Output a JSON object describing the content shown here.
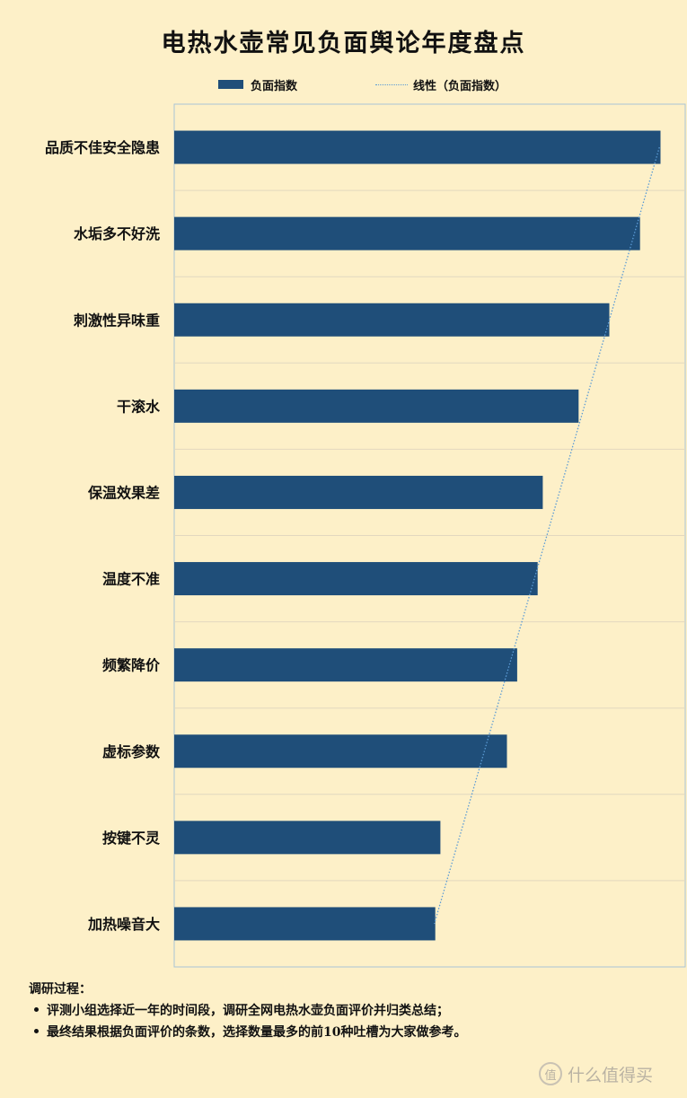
{
  "chart_data": {
    "type": "bar",
    "orientation": "horizontal",
    "title": "电热水壶常见负面舆论年度盘点",
    "categories": [
      "品质不佳安全隐患",
      "水垢多不好洗",
      "刺激性异味重",
      "干滚水",
      "保温效果差",
      "温度不准",
      "频繁降价",
      "虚标参数",
      "按键不灵",
      "加热噪音大"
    ],
    "series": [
      {
        "name": "负面指数",
        "values": [
          95,
          91,
          85,
          79,
          72,
          71,
          67,
          65,
          52,
          51
        ]
      }
    ],
    "trendline": {
      "name": "线性（负面指数）",
      "style": "dotted",
      "color": "#5b9bd5"
    },
    "xlim": [
      0,
      100
    ],
    "legend_position": "top",
    "grid": true,
    "bar_color": "#1f4e79"
  },
  "notes": {
    "heading": "调研过程：",
    "items": [
      "评测小组选择近一年的时间段，调研全网电热水壶负面评价并归类总结；",
      "最终结果根据负面评价的条数，选择数量最多的前10种吐槽为大家做参考。"
    ]
  },
  "watermark": {
    "logo": "值",
    "text": "什么值得买"
  }
}
